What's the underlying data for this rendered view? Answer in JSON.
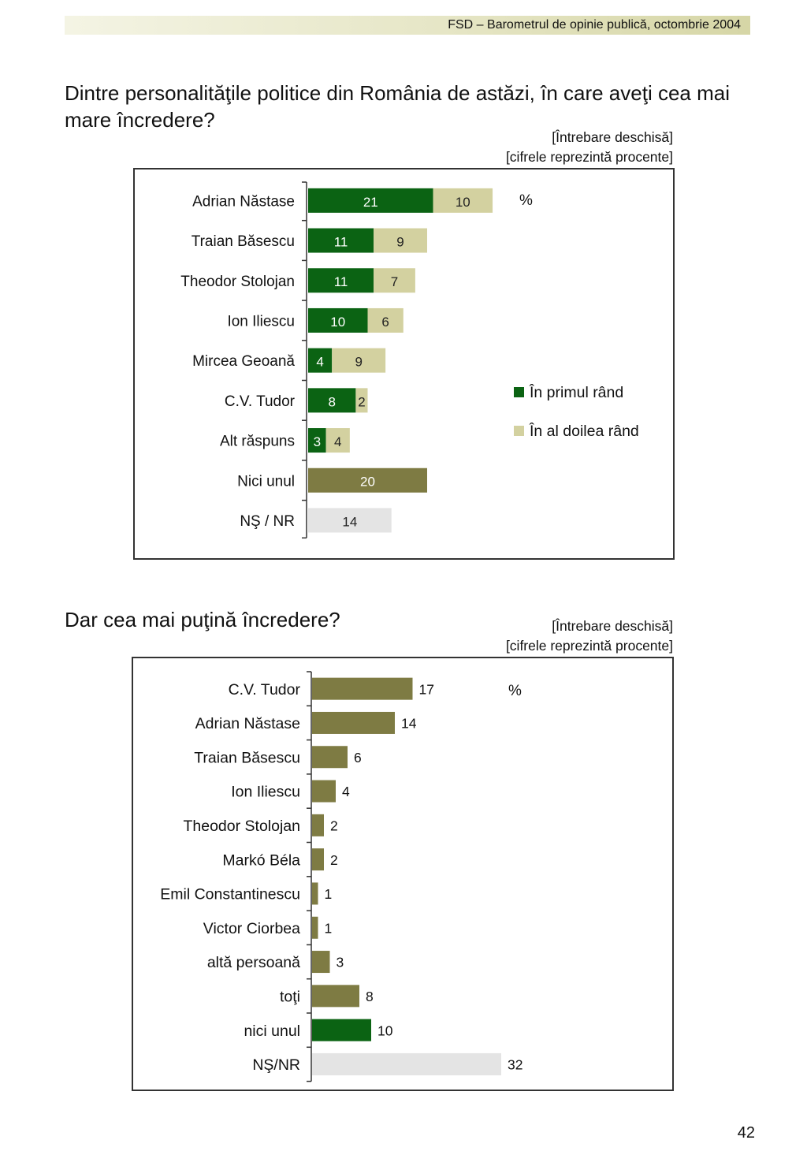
{
  "header": {
    "text": "FSD  –  Barometrul de opinie publică, octombrie 2004"
  },
  "page_number": "42",
  "colors": {
    "dark_green": "#0b6313",
    "light_khaki": "#d3d1a0",
    "olive": "#7e7b43",
    "light_gray": "#e4e4e4",
    "frame": "#333333"
  },
  "section1": {
    "question": "Dintre personalităţile politice din România de astăzi, în care aveţi cea mai mare încredere?",
    "note_line1": "[Întrebare deschisă]",
    "note_line2": "[cifrele reprezintă procente]"
  },
  "section2": {
    "question": "Dar cea mai puţină încredere?",
    "note_line1": "[Întrebare deschisă]",
    "note_line2": "[cifrele reprezintă procente]"
  },
  "chart_data": [
    {
      "type": "bar",
      "orientation": "horizontal",
      "stacked": true,
      "unit_label": "%",
      "categories": [
        "Adrian Năstase",
        "Traian Băsescu",
        "Theodor Stolojan",
        "Ion Iliescu",
        "Mircea Geoană",
        "C.V. Tudor",
        "Alt răspuns",
        "Nici unul",
        "NŞ / NR"
      ],
      "series": [
        {
          "name": "În primul rând",
          "color": "#0b6313",
          "values": [
            21,
            11,
            11,
            10,
            4,
            8,
            3,
            null,
            null
          ]
        },
        {
          "name": "În al doilea rând",
          "color": "#d3d1a0",
          "values": [
            10,
            9,
            7,
            6,
            9,
            2,
            4,
            null,
            null
          ]
        },
        {
          "color": "#7e7b43",
          "values": [
            null,
            null,
            null,
            null,
            null,
            null,
            null,
            20,
            null
          ]
        },
        {
          "color": "#e4e4e4",
          "values": [
            null,
            null,
            null,
            null,
            null,
            null,
            null,
            null,
            14
          ]
        }
      ],
      "legend": [
        "În primul rând",
        "În al doilea rând"
      ],
      "legend_position": "right",
      "xlim": [
        0,
        45
      ]
    },
    {
      "type": "bar",
      "orientation": "horizontal",
      "unit_label": "%",
      "categories": [
        "C.V. Tudor",
        "Adrian Năstase",
        "Traian Băsescu",
        "Ion Iliescu",
        "Theodor Stolojan",
        "Markó Béla",
        "Emil Constantinescu",
        "Victor Ciorbea",
        "altă persoană",
        "toţi",
        "nici unul",
        "NŞ/NR"
      ],
      "values": [
        17,
        14,
        6,
        4,
        2,
        2,
        1,
        1,
        3,
        8,
        10,
        32
      ],
      "bar_colors": [
        "#7e7b43",
        "#7e7b43",
        "#7e7b43",
        "#7e7b43",
        "#7e7b43",
        "#7e7b43",
        "#7e7b43",
        "#7e7b43",
        "#7e7b43",
        "#7e7b43",
        "#0b6313",
        "#e4e4e4"
      ],
      "xlim": [
        0,
        40
      ]
    }
  ]
}
